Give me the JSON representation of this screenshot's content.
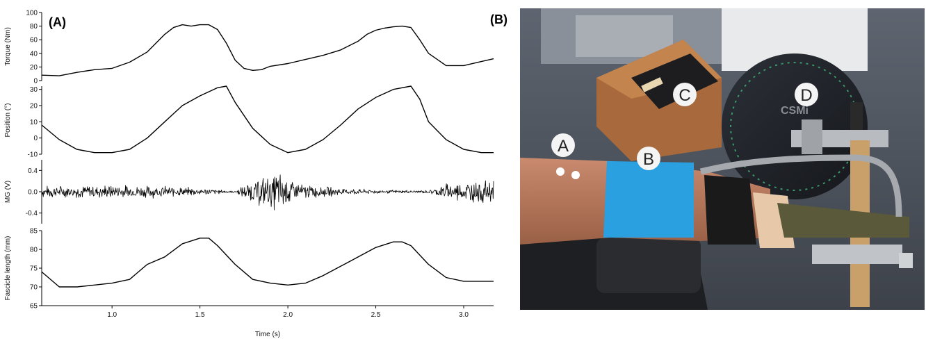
{
  "panel_labels": {
    "a": "(A)",
    "b": "(B)"
  },
  "chart_data": {
    "type": "line",
    "x_axis": {
      "label": "Time (s)",
      "range": [
        0.6,
        3.17
      ],
      "ticks": [
        "1.0",
        "1.5",
        "2.0",
        "2.5",
        "3.0"
      ],
      "tick_values": [
        1.0,
        1.5,
        2.0,
        2.5,
        3.0
      ]
    },
    "panels": [
      {
        "ylabel": "Torque (Nm)",
        "ylim": [
          0,
          100
        ],
        "ticks": [
          0,
          20,
          40,
          60,
          80,
          100
        ],
        "tick_labels": [
          "0",
          "20",
          "40",
          "60",
          "80",
          "100"
        ],
        "series": [
          {
            "x": [
              0.6,
              0.7,
              0.8,
              0.9,
              1.0,
              1.1,
              1.2,
              1.3,
              1.35,
              1.4,
              1.45,
              1.5,
              1.55,
              1.6,
              1.65,
              1.7,
              1.75,
              1.8,
              1.85,
              1.9,
              2.0,
              2.1,
              2.2,
              2.3,
              2.4,
              2.45,
              2.5,
              2.55,
              2.6,
              2.65,
              2.7,
              2.75,
              2.8,
              2.9,
              3.0,
              3.1,
              3.17
            ],
            "y": [
              8,
              7,
              12,
              16,
              18,
              27,
              42,
              68,
              78,
              82,
              80,
              82,
              82,
              75,
              55,
              30,
              18,
              15,
              16,
              21,
              25,
              31,
              37,
              45,
              58,
              68,
              74,
              77,
              79,
              80,
              78,
              60,
              40,
              22,
              22,
              28,
              32
            ]
          }
        ]
      },
      {
        "ylabel": "Position (°)",
        "ylim": [
          -10,
          32
        ],
        "ticks": [
          -10,
          0,
          10,
          20,
          30
        ],
        "tick_labels": [
          "-10",
          "0",
          "10",
          "20",
          "30"
        ],
        "series": [
          {
            "x": [
              0.6,
              0.7,
              0.8,
              0.9,
              1.0,
              1.1,
              1.2,
              1.3,
              1.4,
              1.5,
              1.6,
              1.65,
              1.7,
              1.8,
              1.9,
              2.0,
              2.1,
              2.2,
              2.3,
              2.4,
              2.5,
              2.6,
              2.7,
              2.75,
              2.8,
              2.9,
              3.0,
              3.1,
              3.17
            ],
            "y": [
              8,
              -1,
              -7,
              -9,
              -9,
              -7,
              0,
              10,
              20,
              26,
              31,
              32,
              22,
              6,
              -4,
              -9,
              -7,
              -1,
              8,
              18,
              25,
              30,
              32,
              24,
              10,
              -1,
              -7,
              -9,
              -9
            ]
          }
        ]
      },
      {
        "ylabel": "MG (V)",
        "ylim": [
          -0.6,
          0.6
        ],
        "ticks": [
          -0.4,
          0.0,
          0.4
        ],
        "tick_labels": [
          "-0.4",
          "0.0",
          "0.4"
        ],
        "series": [
          {
            "x": [
              0.6,
              1.0,
              1.3,
              1.5,
              1.7,
              1.8,
              1.9,
              1.95,
              2.0,
              2.1,
              2.3,
              2.5,
              2.8,
              2.9,
              3.0,
              3.1,
              3.17
            ],
            "amplitude": [
              0.12,
              0.15,
              0.12,
              0.08,
              0.02,
              0.25,
              0.35,
              0.45,
              0.32,
              0.15,
              0.08,
              0.04,
              0.03,
              0.18,
              0.22,
              0.25,
              0.25
            ]
          }
        ]
      },
      {
        "ylabel": "Fascicle length (mm)",
        "ylim": [
          65,
          85
        ],
        "ticks": [
          65,
          70,
          75,
          80,
          85
        ],
        "tick_labels": [
          "65",
          "70",
          "75",
          "80",
          "85"
        ],
        "series": [
          {
            "x": [
              0.6,
              0.7,
              0.8,
              0.9,
              1.0,
              1.1,
              1.15,
              1.2,
              1.3,
              1.4,
              1.5,
              1.55,
              1.6,
              1.7,
              1.8,
              1.9,
              2.0,
              2.1,
              2.2,
              2.3,
              2.4,
              2.5,
              2.6,
              2.65,
              2.7,
              2.8,
              2.9,
              3.0,
              3.1,
              3.17
            ],
            "y": [
              74,
              70,
              70,
              70.5,
              71,
              72,
              74,
              76,
              78,
              81.5,
              83,
              83,
              81,
              76,
              72,
              71,
              70.5,
              71,
              73,
              75.5,
              78,
              80.5,
              82,
              82,
              81,
              76,
              72.5,
              71.5,
              71.5,
              71.5
            ]
          }
        ]
      }
    ]
  },
  "photo": {
    "callouts": [
      "A",
      "B",
      "C",
      "D"
    ],
    "device_text": "CSMi"
  }
}
